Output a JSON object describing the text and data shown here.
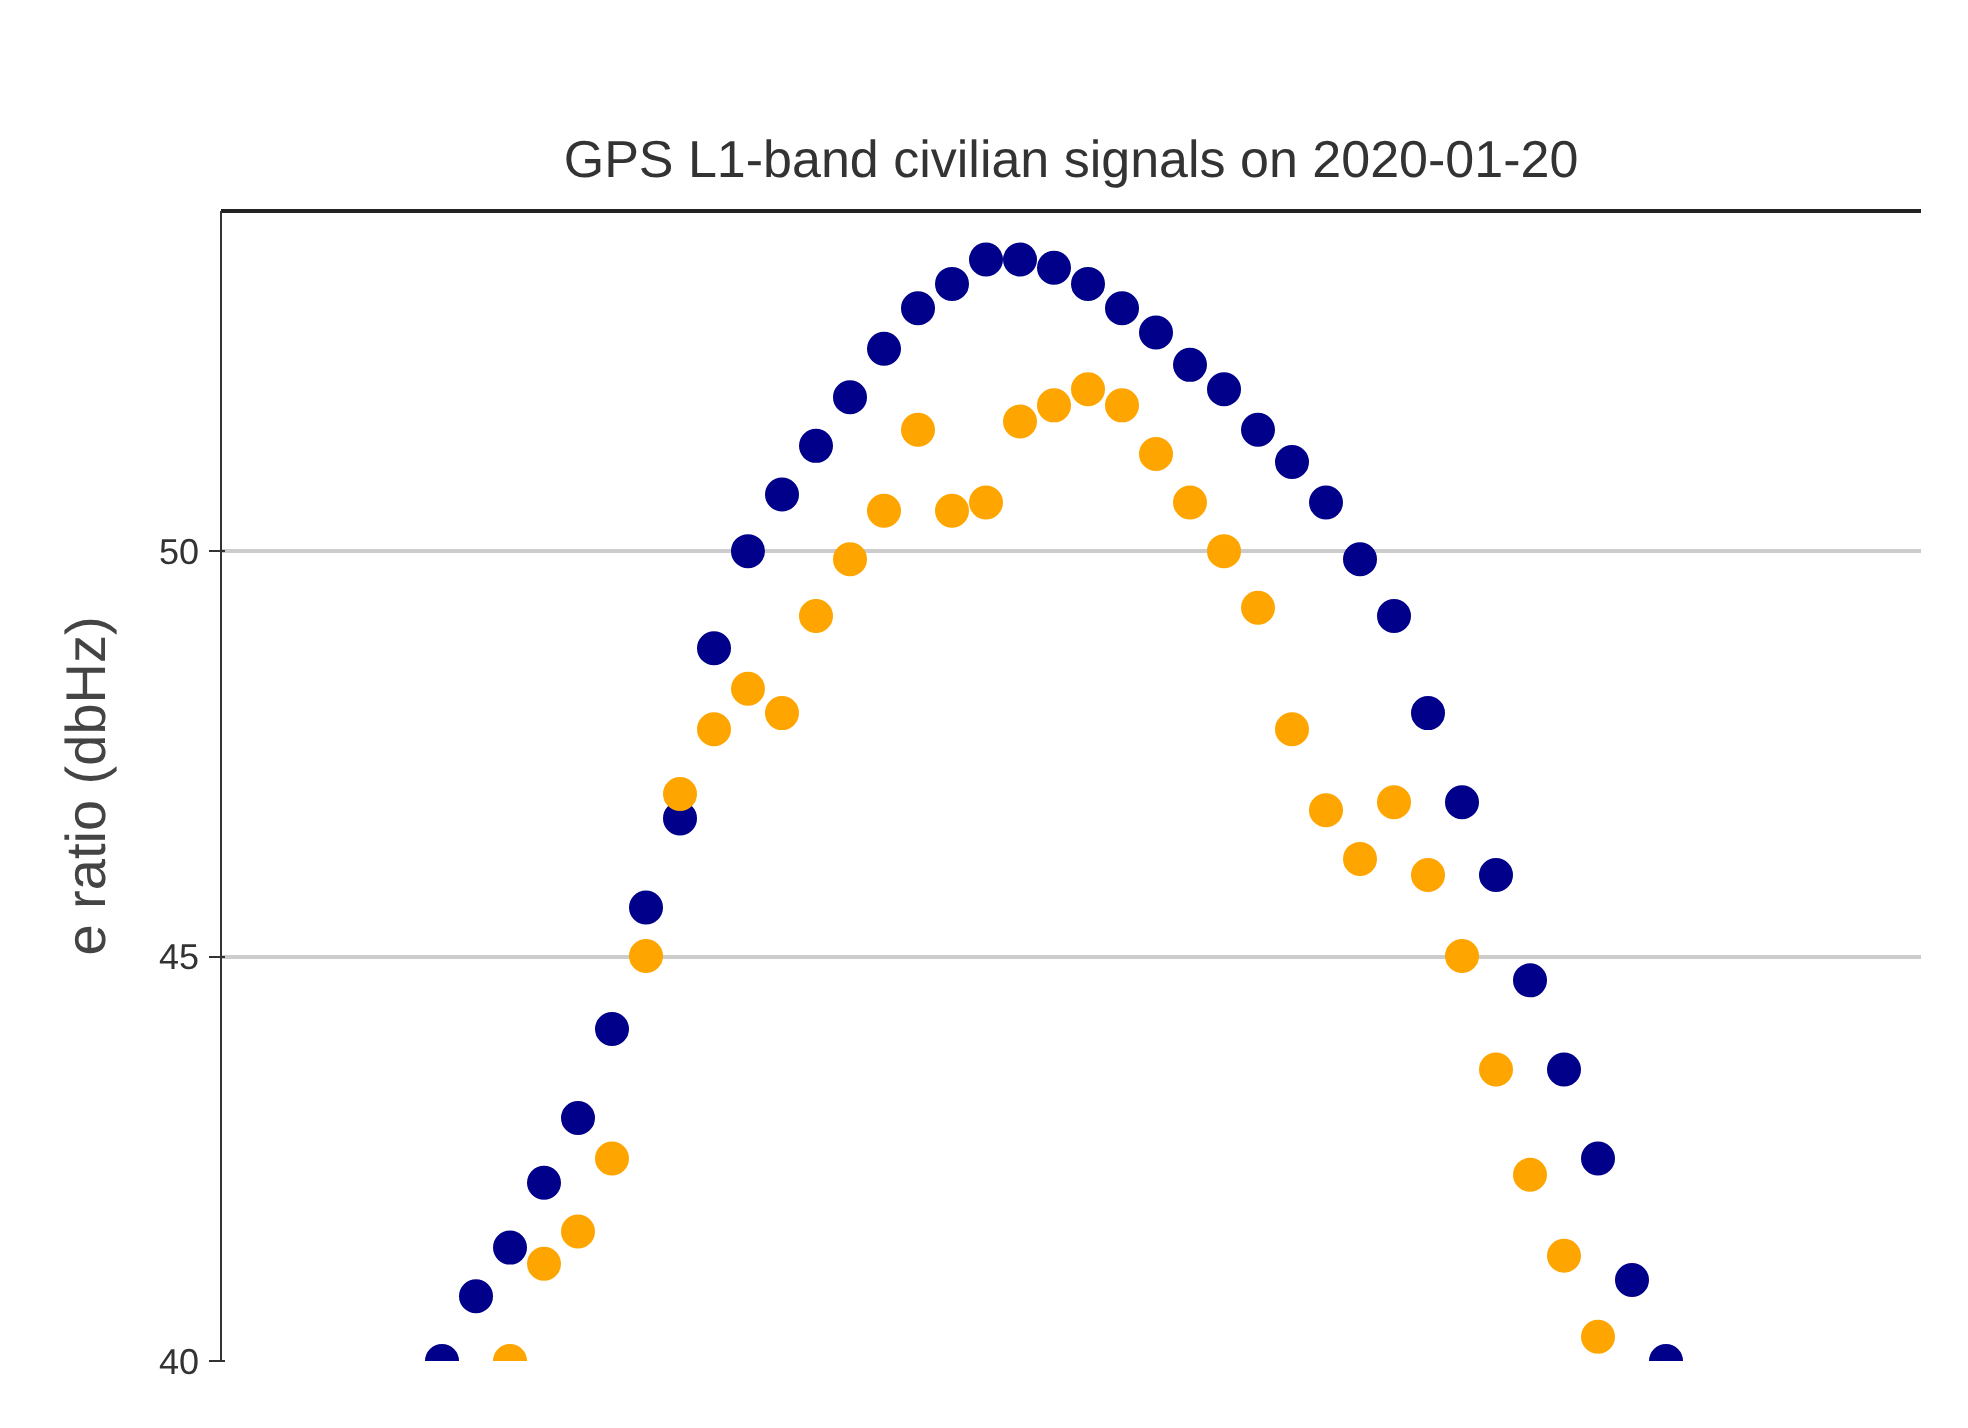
{
  "chart_data": {
    "type": "scatter",
    "title": "GPS L1-band civilian signals on 2020-01-20",
    "ylabel": "e ratio (dbHz)",
    "categories": [
      null,
      null,
      null,
      null,
      null,
      null,
      null,
      null,
      null,
      null,
      null,
      null,
      null,
      null,
      null,
      null,
      null,
      null,
      null,
      null,
      null,
      null,
      null,
      null,
      null,
      null,
      null,
      null,
      null,
      null,
      null,
      null,
      null,
      null,
      null,
      null,
      null,
      null,
      null,
      null,
      null,
      null,
      null,
      null,
      null,
      null,
      null,
      null,
      null,
      null
    ],
    "series": [
      {
        "color": "#00008b",
        "values": [
          null,
          null,
          null,
          null,
          null,
          null,
          40.0,
          40.8,
          41.4,
          42.2,
          43.0,
          44.1,
          45.6,
          46.7,
          48.8,
          50.0,
          50.7,
          51.3,
          51.9,
          52.5,
          53.0,
          53.3,
          53.6,
          53.6,
          53.5,
          53.3,
          53.0,
          52.7,
          52.3,
          52.0,
          51.5,
          51.1,
          50.6,
          49.9,
          49.2,
          48.0,
          46.9,
          46.0,
          44.7,
          43.6,
          42.5,
          41.0,
          40.0,
          null,
          null,
          null,
          null,
          null,
          null,
          null
        ]
      },
      {
        "color": "#ffa500",
        "values": [
          null,
          null,
          null,
          null,
          null,
          null,
          null,
          null,
          40.0,
          41.2,
          41.6,
          42.5,
          45.0,
          47.0,
          47.8,
          48.3,
          48.0,
          49.2,
          49.9,
          50.5,
          51.5,
          50.5,
          50.6,
          51.6,
          51.8,
          52.0,
          51.8,
          51.2,
          50.6,
          50.0,
          49.3,
          47.8,
          46.8,
          46.2,
          46.9,
          46.0,
          45.0,
          43.6,
          42.3,
          41.3,
          40.3,
          null,
          null,
          null,
          null,
          null,
          null,
          null,
          null,
          null
        ]
      }
    ],
    "ylim": [
      40,
      54.2
    ],
    "yticks": [
      40,
      45,
      50
    ],
    "grid": "y",
    "marker": "circle",
    "tick_labels": "y"
  }
}
